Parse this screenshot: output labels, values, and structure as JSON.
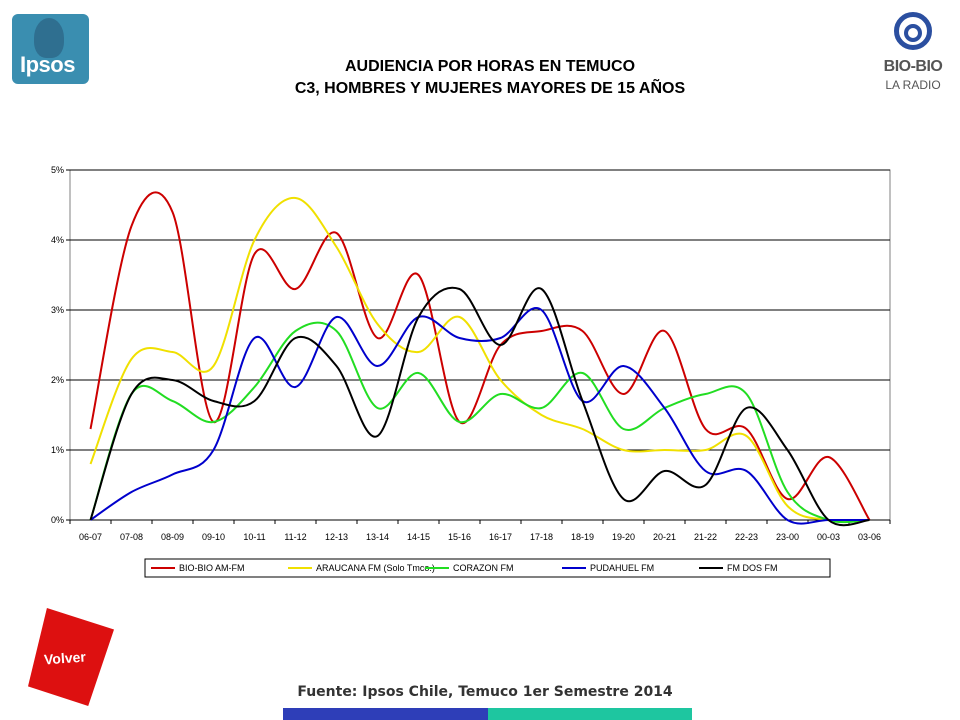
{
  "logos": {
    "ipsos": "Ipsos",
    "biobio_1": "BIO-BIO",
    "biobio_2": "LA RADIO"
  },
  "header": {
    "title_line1": "AUDIENCIA POR HORAS EN TEMUCO",
    "title_line2": "C3, HOMBRES Y MUJERES MAYORES DE 15 AÑOS"
  },
  "footer": {
    "source": "Fuente: Ipsos Chile, Temuco 1er Semestre 2014",
    "volver": "Volver"
  },
  "colors": {
    "bar_blue": "#2e3eb8",
    "bar_teal": "#1ec6a0",
    "volver": "#dd1010"
  },
  "chart_data": {
    "type": "line",
    "title": "AUDIENCIA POR HORAS EN TEMUCO",
    "subtitle": "C3, HOMBRES Y MUJERES MAYORES DE 15 AÑOS",
    "categories": [
      "06-07",
      "07-08",
      "08-09",
      "09-10",
      "10-11",
      "11-12",
      "12-13",
      "13-14",
      "14-15",
      "15-16",
      "16-17",
      "17-18",
      "18-19",
      "19-20",
      "20-21",
      "21-22",
      "22-23",
      "23-00",
      "00-03",
      "03-06"
    ],
    "ylim": [
      0,
      5
    ],
    "yticks": [
      "0%",
      "1%",
      "2%",
      "3%",
      "4%",
      "5%"
    ],
    "grid": true,
    "legend": "bottom",
    "series": [
      {
        "name": "BIO-BIO AM-FM",
        "color": "#cc0000",
        "values": [
          1.3,
          4.2,
          4.4,
          1.4,
          3.8,
          3.3,
          4.1,
          2.6,
          3.5,
          1.4,
          2.5,
          2.7,
          2.7,
          1.8,
          2.7,
          1.3,
          1.3,
          0.3,
          0.9,
          0.0
        ]
      },
      {
        "name": "ARAUCANA FM (Solo Tmco.)",
        "color": "#f0e000",
        "values": [
          0.8,
          2.3,
          2.4,
          2.2,
          4.0,
          4.6,
          3.9,
          2.8,
          2.4,
          2.9,
          2.0,
          1.5,
          1.3,
          1.0,
          1.0,
          1.0,
          1.2,
          0.2,
          0.0,
          0.0
        ]
      },
      {
        "name": "CORAZON FM",
        "color": "#22dd22",
        "values": [
          0.0,
          1.8,
          1.7,
          1.4,
          1.9,
          2.7,
          2.7,
          1.6,
          2.1,
          1.4,
          1.8,
          1.6,
          2.1,
          1.3,
          1.6,
          1.8,
          1.8,
          0.4,
          0.0,
          0.0
        ]
      },
      {
        "name": "PUDAHUEL FM",
        "color": "#0000cc",
        "values": [
          0.0,
          0.4,
          0.65,
          1.0,
          2.6,
          1.9,
          2.9,
          2.2,
          2.9,
          2.6,
          2.6,
          3.0,
          1.7,
          2.2,
          1.6,
          0.7,
          0.7,
          0.0,
          0.0,
          0.0
        ]
      },
      {
        "name": "FM DOS FM",
        "color": "#000000",
        "values": [
          0.0,
          1.8,
          2.0,
          1.7,
          1.7,
          2.6,
          2.2,
          1.2,
          2.9,
          3.3,
          2.5,
          3.3,
          1.7,
          0.3,
          0.7,
          0.5,
          1.6,
          1.0,
          0.0,
          0.0
        ]
      }
    ]
  }
}
